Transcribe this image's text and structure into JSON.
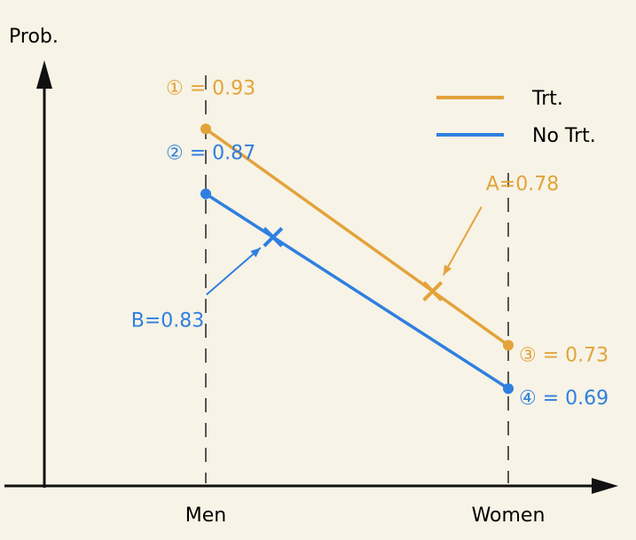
{
  "chart_data": {
    "type": "line",
    "y_label": "Prob.",
    "categories": [
      "Men",
      "Women"
    ],
    "series": [
      {
        "name": "Trt.",
        "color": "#e3a33a",
        "values": [
          0.93,
          0.73
        ],
        "value_labels": [
          "① = 0.93",
          "③ = 0.73"
        ]
      },
      {
        "name": "No Trt.",
        "color": "#2f7fe0",
        "values": [
          0.87,
          0.69
        ],
        "value_labels": [
          "② = 0.87",
          "④ = 0.69"
        ]
      }
    ],
    "annotations": [
      {
        "text": "A=0.78",
        "value": 0.78,
        "series": 0
      },
      {
        "text": "B=0.83",
        "value": 0.83,
        "series": 1
      }
    ],
    "ylim": [
      0.6,
      1.0
    ],
    "legend": "top-right"
  }
}
